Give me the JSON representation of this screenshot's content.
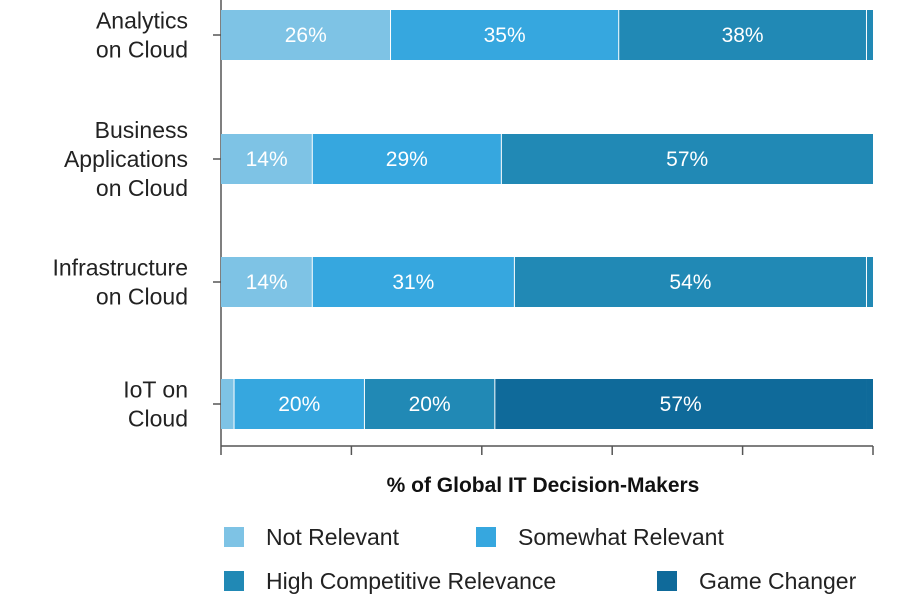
{
  "chart_data": {
    "type": "bar",
    "orientation": "horizontal",
    "stacked": true,
    "categories": [
      [
        "Analytics",
        "on Cloud"
      ],
      [
        "Business",
        "Applications",
        "on Cloud"
      ],
      [
        "Infrastructure",
        "on Cloud"
      ],
      [
        "IoT on",
        "Cloud"
      ]
    ],
    "series": [
      {
        "name": "Not Relevant",
        "color": "#7ec3e5",
        "values": [
          26,
          14,
          14,
          2
        ],
        "labels": [
          "26%",
          "14%",
          "14%",
          ""
        ]
      },
      {
        "name": "Somewhat Relevant",
        "color": "#36a7df",
        "values": [
          35,
          29,
          31,
          20
        ],
        "labels": [
          "35%",
          "29%",
          "31%",
          "20%"
        ]
      },
      {
        "name": "High Competitive Relevance",
        "color": "#2189b5",
        "values": [
          38,
          57,
          54,
          20
        ],
        "labels": [
          "38%",
          "57%",
          "54%",
          "20%"
        ]
      },
      {
        "name": "Game Changer",
        "color": "#0f6a9a",
        "values": [
          0,
          0,
          0,
          57
        ],
        "labels": [
          "",
          "",
          "",
          "57%"
        ]
      }
    ],
    "xlabel": "% of Global IT Decision-Makers",
    "ylabel": "",
    "title": "",
    "xlim": [
      0,
      100
    ],
    "grid": false,
    "legend_position": "bottom"
  }
}
